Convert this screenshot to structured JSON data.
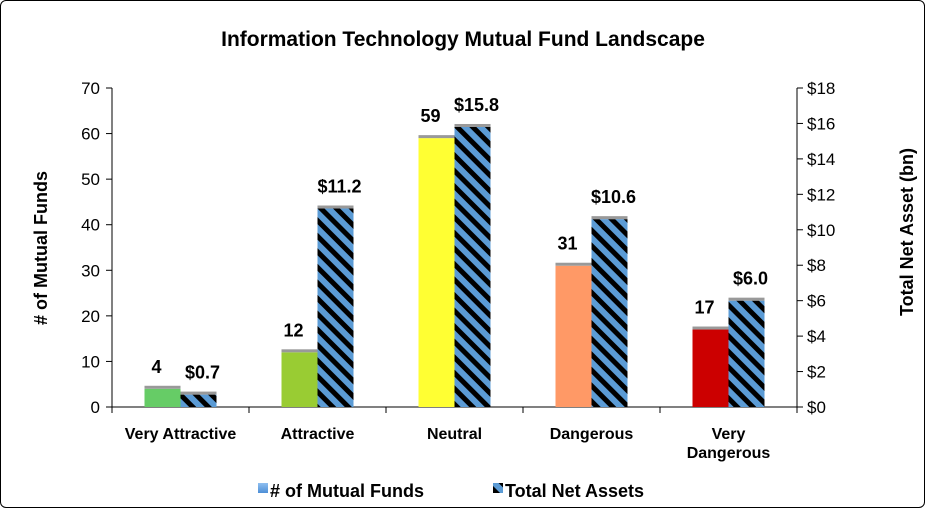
{
  "colors": {
    "very_attractive": "#66cc66",
    "attractive": "#99cc33",
    "neutral": "#ffff33",
    "dangerous": "#ff9966",
    "very_dangerous": "#cc0000",
    "stripe_blue": "#5b9bd5",
    "stripe_black": "#000000",
    "legend_funds": "#5b9bd5"
  },
  "chart_data": {
    "type": "bar",
    "title": "Information Technology Mutual Fund Landscape",
    "ylabel": "# of Mutual Funds",
    "y2label": "Total Net Asset (bn)",
    "ylim": [
      0,
      70
    ],
    "y2lim": [
      0,
      18
    ],
    "yticks": [
      "0",
      "10",
      "20",
      "30",
      "40",
      "50",
      "60",
      "70"
    ],
    "y2ticks": [
      "$0",
      "$2",
      "$4",
      "$6",
      "$8",
      "$10",
      "$12",
      "$14",
      "$16",
      "$18"
    ],
    "categories": [
      [
        "Very Attractive"
      ],
      [
        "Attractive"
      ],
      [
        "Neutral"
      ],
      [
        "Dangerous"
      ],
      [
        "Very",
        "Dangerous"
      ]
    ],
    "series": [
      {
        "name": "# of Mutual Funds",
        "axis": "left",
        "values": [
          4,
          12,
          59,
          31,
          17
        ],
        "labels": [
          "4",
          "12",
          "59",
          "31",
          "17"
        ]
      },
      {
        "name": "Total Net Assets",
        "axis": "right",
        "values": [
          0.7,
          11.2,
          15.8,
          10.6,
          6.0
        ],
        "labels": [
          "$0.7",
          "$11.2",
          "$15.8",
          "$10.6",
          "$6.0"
        ]
      }
    ],
    "legend": "bottom",
    "grid": false
  }
}
